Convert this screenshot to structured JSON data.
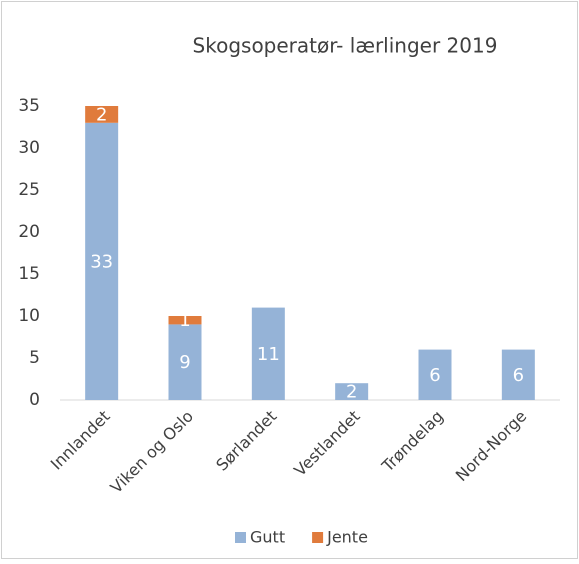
{
  "chart_data": {
    "type": "stacked_bar",
    "title": "Skogsoperatør- lærlinger 2019",
    "categories": [
      "Innlandet",
      "Viken og Oslo",
      "Sørlandet",
      "Vestlandet",
      "Trøndelag",
      "Nord-Norge"
    ],
    "series": [
      {
        "name": "Gutt",
        "color": "#95b3d7",
        "values": [
          33,
          9,
          11,
          2,
          6,
          6
        ]
      },
      {
        "name": "Jente",
        "color": "#e07b3c",
        "values": [
          2,
          1,
          null,
          null,
          null,
          null
        ]
      }
    ],
    "ylim": [
      0,
      35
    ],
    "yticks": [
      0,
      5,
      10,
      15,
      20,
      25,
      30,
      35
    ],
    "grid": false,
    "legend": "bottom"
  }
}
